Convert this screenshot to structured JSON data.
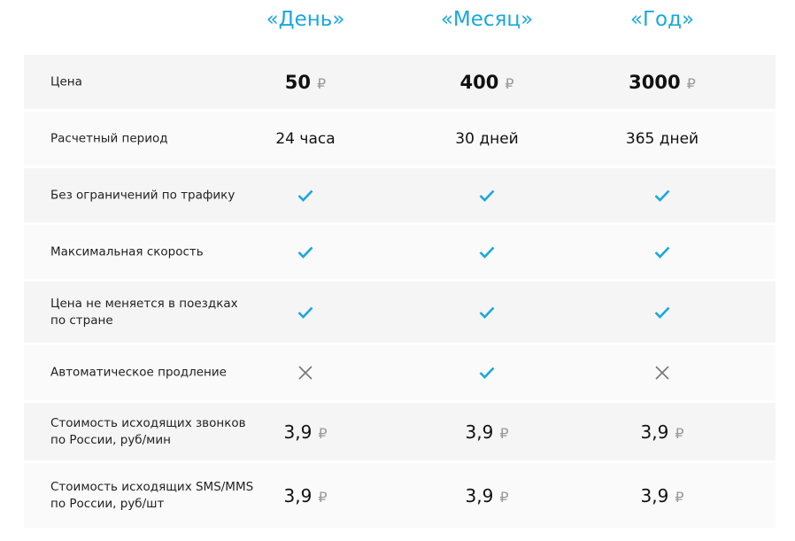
{
  "plans": [
    "«День»",
    "«Месяц»",
    "«Год»"
  ],
  "currency_symbol": "₽",
  "colors": {
    "accent": "#1aa7e0",
    "cross": "#777777"
  },
  "rows": [
    {
      "label": "Цена",
      "type": "price",
      "values": [
        "50",
        "400",
        "3000"
      ]
    },
    {
      "label": "Расчетный период",
      "type": "text",
      "values": [
        "24 часа",
        "30 дней",
        "365 дней"
      ]
    },
    {
      "label": "Без ограничений по трафику",
      "type": "icon",
      "values": [
        "check-icon",
        "check-icon",
        "check-icon"
      ]
    },
    {
      "label": "Максимальная скорость",
      "type": "icon",
      "values": [
        "check-icon",
        "check-icon",
        "check-icon"
      ]
    },
    {
      "label": "Цена не меняется в поездках\nпо стране",
      "type": "icon",
      "values": [
        "check-icon",
        "check-icon",
        "check-icon"
      ]
    },
    {
      "label": "Автоматическое продление",
      "type": "icon",
      "values": [
        "cross-icon",
        "check-icon",
        "cross-icon"
      ]
    },
    {
      "label": "Стоимость исходящих звонков\nпо России, руб/мин",
      "type": "rate",
      "values": [
        "3,9",
        "3,9",
        "3,9"
      ]
    },
    {
      "label": "Стоимость исходящих SMS/MMS\nпо России, руб/шт",
      "type": "rate",
      "values": [
        "3,9",
        "3,9",
        "3,9"
      ]
    }
  ]
}
